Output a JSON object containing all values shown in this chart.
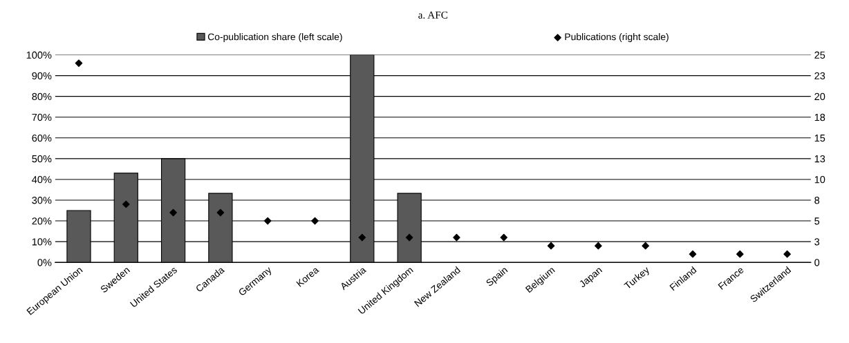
{
  "chart_data": {
    "type": "bar",
    "title": "a. AFC",
    "categories": [
      "European Union",
      "Sweden",
      "United States",
      "Canada",
      "Germany",
      "Korea",
      "Austria",
      "United Kingdom",
      "New Zealand",
      "Spain",
      "Belgium",
      "Japan",
      "Turkey",
      "Finland",
      "France",
      "Switzerland"
    ],
    "series": [
      {
        "name": "Co-publication share (left scale)",
        "color": "#595959",
        "values": [
          25,
          43,
          50,
          33.3,
          null,
          null,
          100,
          33.3,
          null,
          null,
          null,
          null,
          null,
          null,
          null,
          null
        ]
      },
      {
        "name": "Publications (right scale)",
        "type": "scatter",
        "axis": "y2",
        "color": "#000000",
        "marker": "diamond",
        "values": [
          24,
          7,
          6,
          6,
          5,
          5,
          3,
          3,
          3,
          3,
          2,
          2,
          2,
          1,
          1,
          1
        ]
      }
    ],
    "ylim": [
      0,
      100
    ],
    "yticks": [
      {
        "value": 0,
        "label": "0%"
      },
      {
        "value": 10,
        "label": "10%"
      },
      {
        "value": 20,
        "label": "20%"
      },
      {
        "value": 30,
        "label": "30%"
      },
      {
        "value": 40,
        "label": "40%"
      },
      {
        "value": 50,
        "label": "50%"
      },
      {
        "value": 60,
        "label": "60%"
      },
      {
        "value": 70,
        "label": "70%"
      },
      {
        "value": 80,
        "label": "80%"
      },
      {
        "value": 90,
        "label": "90%"
      },
      {
        "value": 100,
        "label": "100%"
      }
    ],
    "y2lim": [
      0,
      25
    ],
    "y2ticks": [
      0,
      {
        "value": 2.5,
        "label": "3"
      },
      5,
      {
        "value": 7.5,
        "label": "8"
      },
      10,
      {
        "value": 12.5,
        "label": "13"
      },
      15,
      {
        "value": 17.5,
        "label": "18"
      },
      20,
      {
        "value": 22.5,
        "label": "23"
      },
      25
    ],
    "grid": "y",
    "legend": "top"
  }
}
